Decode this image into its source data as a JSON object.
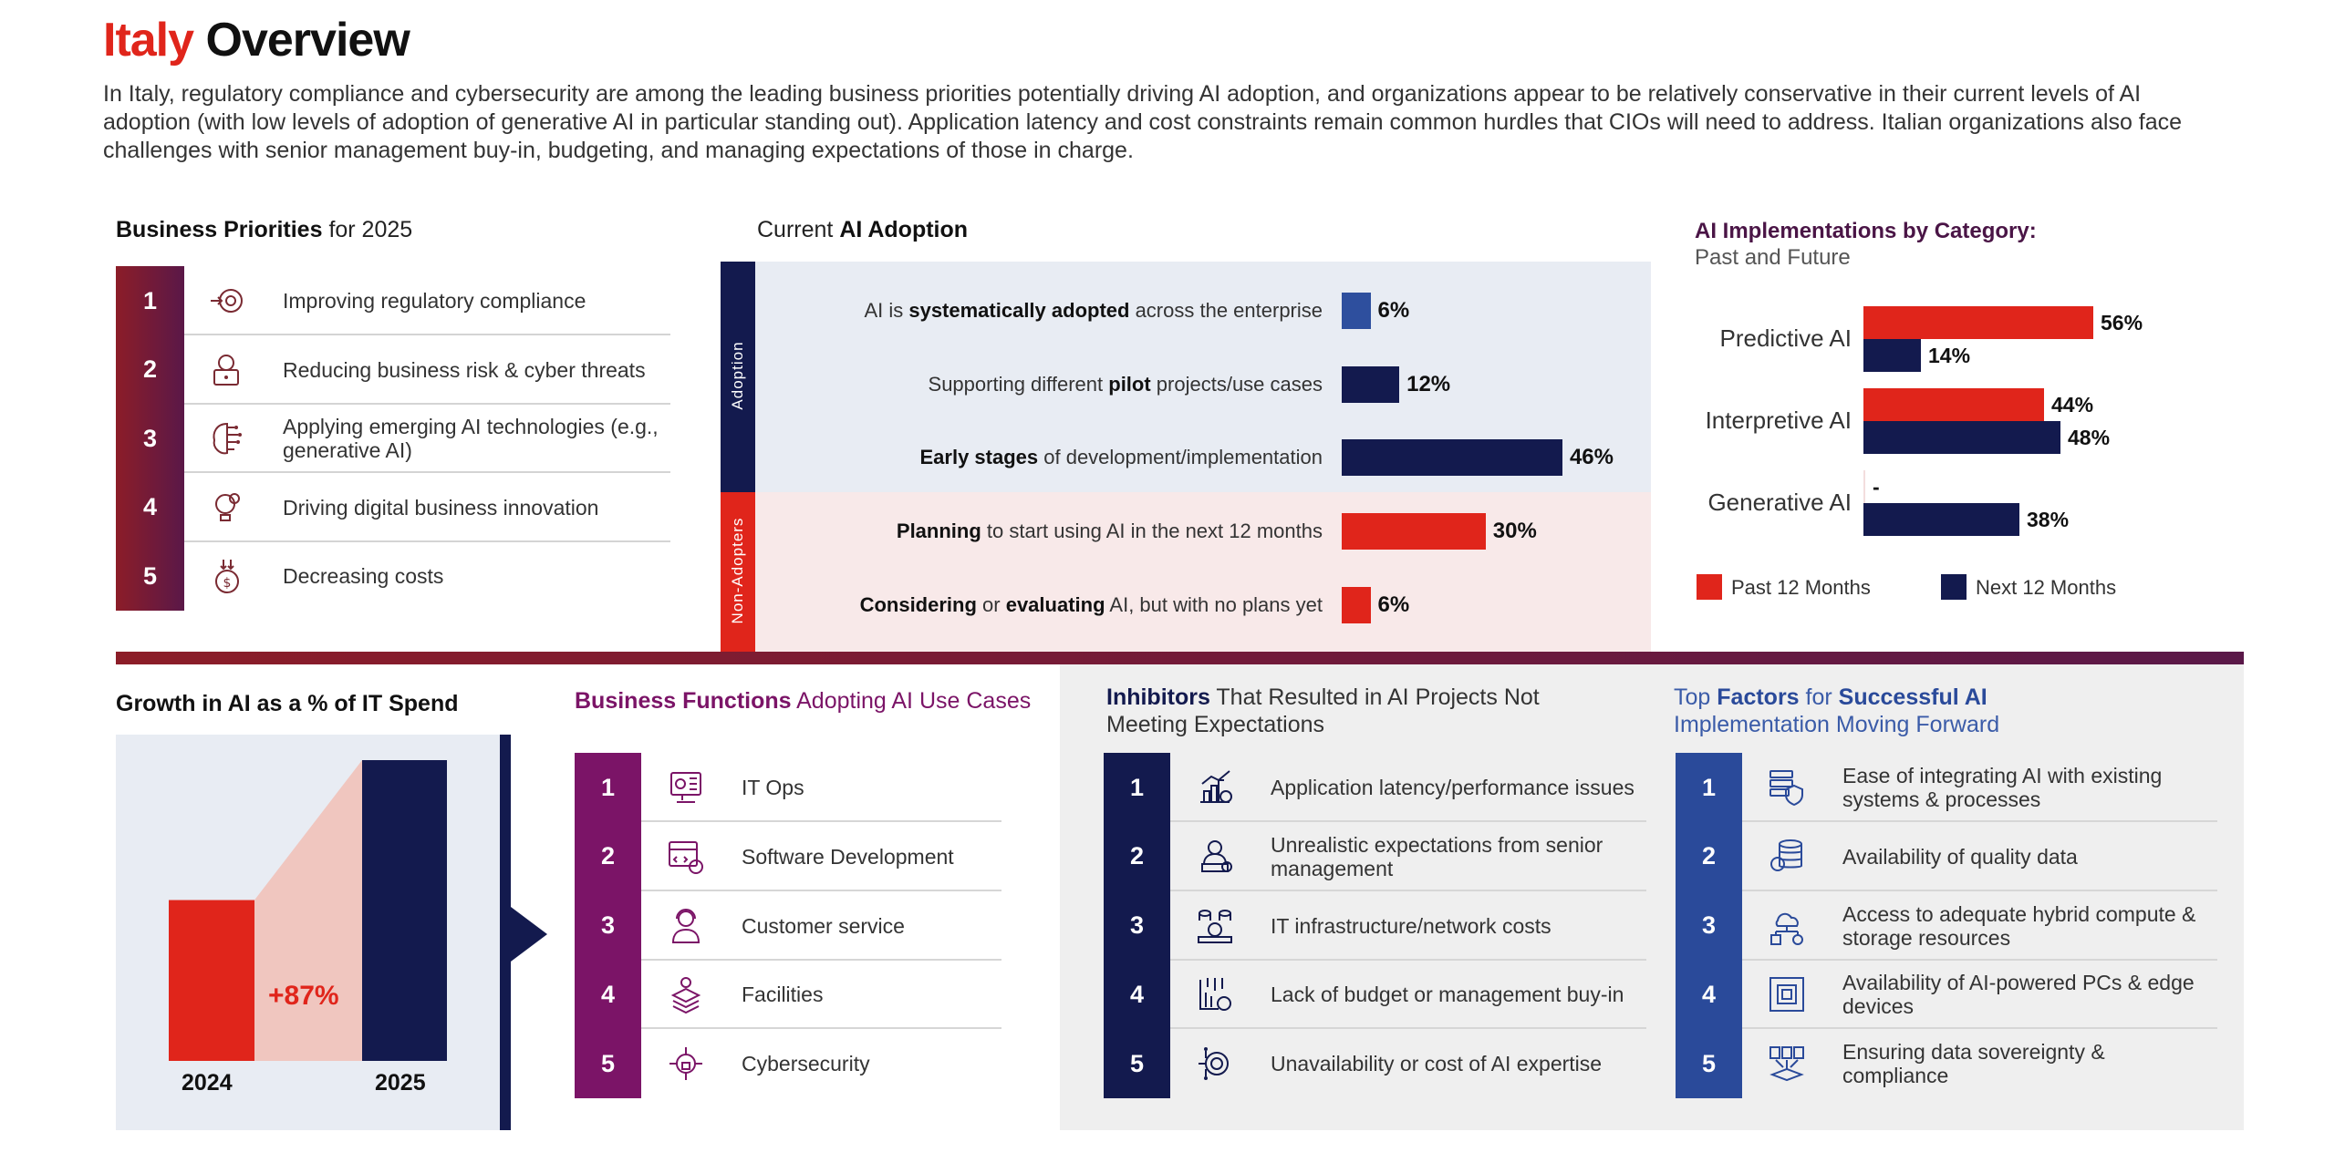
{
  "header": {
    "title_country": "Italy",
    "title_rest": "Overview",
    "intro": "In Italy, regulatory compliance and cybersecurity are among the leading business priorities potentially driving AI adoption, and organizations appear to be relatively conservative in their current levels of AI adoption (with low levels of adoption of generative AI in particular standing out). Application latency and cost constraints remain common hurdles that CIOs will need to address. Italian organizations also face challenges with senior management buy-in, budgeting, and managing expectations of those in charge."
  },
  "colors": {
    "red": "#e0251b",
    "navy": "#131a4e",
    "blue": "#2a4a9a",
    "purple": "#7b1467",
    "maroon": "#8c1d28",
    "light_pink": "#f0c6bf"
  },
  "business_priorities": {
    "title_bold": "Business Priorities",
    "title_rest": "for 2025",
    "items": [
      {
        "rank": "1",
        "icon": "compliance-gear-icon",
        "label": "Improving regulatory compliance"
      },
      {
        "rank": "2",
        "icon": "hacker-laptop-icon",
        "label": "Reducing business risk & cyber threats"
      },
      {
        "rank": "3",
        "icon": "ai-brain-icon",
        "label": "Applying emerging AI technologies (e.g., generative AI)"
      },
      {
        "rank": "4",
        "icon": "innovation-bulb-icon",
        "label": "Driving digital business innovation"
      },
      {
        "rank": "5",
        "icon": "cost-down-coin-icon",
        "label": "Decreasing costs"
      }
    ]
  },
  "ai_adoption": {
    "title_prefix": "Current",
    "title_bold": "AI Adoption",
    "group_adoption": "Adoption",
    "group_non_adopters": "Non-Adopters",
    "rows": [
      {
        "pre": "AI is ",
        "bold": "systematically adopted",
        "post": " across the enterprise",
        "value": 6,
        "label": "6%",
        "group": "adoption"
      },
      {
        "pre": "Supporting different ",
        "bold": "pilot",
        "post": " projects/use cases",
        "value": 12,
        "label": "12%",
        "group": "adoption"
      },
      {
        "pre": "",
        "bold": "Early stages",
        "post": " of development/implementation",
        "value": 46,
        "label": "46%",
        "group": "adoption"
      },
      {
        "pre": "",
        "bold": "Planning",
        "post": " to start using AI in the next 12 months",
        "value": 30,
        "label": "30%",
        "group": "non-adopters"
      },
      {
        "pre": "",
        "bold": "Considering",
        "mid": " or ",
        "bold2": "evaluating",
        "post": " AI, but with no plans yet",
        "value": 6,
        "label": "6%",
        "group": "non-adopters"
      }
    ]
  },
  "chart_data": [
    {
      "type": "bar",
      "orientation": "horizontal",
      "title": "Current AI Adoption",
      "categories": [
        "AI is systematically adopted across the enterprise",
        "Supporting different pilot projects/use cases",
        "Early stages of development/implementation",
        "Planning to start using AI in the next 12 months",
        "Considering or evaluating AI, but with no plans yet"
      ],
      "groups": [
        "Adoption",
        "Adoption",
        "Adoption",
        "Non-Adopters",
        "Non-Adopters"
      ],
      "values": [
        6,
        12,
        46,
        30,
        6
      ],
      "unit": "%"
    },
    {
      "type": "bar",
      "orientation": "horizontal",
      "title": "AI Implementations by Category: Past and Future",
      "categories": [
        "Predictive AI",
        "Interpretive AI",
        "Generative AI"
      ],
      "series": [
        {
          "name": "Past 12 Months",
          "values": [
            56,
            44,
            null
          ],
          "labels": [
            "56%",
            "44%",
            "-"
          ],
          "color": "#e0251b"
        },
        {
          "name": "Next 12 Months",
          "values": [
            14,
            48,
            38
          ],
          "labels": [
            "14%",
            "48%",
            "38%"
          ],
          "color": "#131a4e"
        }
      ],
      "legend": "bottom",
      "unit": "%"
    },
    {
      "type": "bar",
      "title": "Growth in AI as a % of IT Spend",
      "categories": [
        "2024",
        "2025"
      ],
      "relative_values": [
        1,
        1.87
      ],
      "annotation": "+87%"
    }
  ],
  "ai_implementations": {
    "title_bold": "AI Implementations by Category:",
    "title_rest": "Past and Future",
    "legend": [
      {
        "label": "Past 12 Months",
        "color": "#e0251b"
      },
      {
        "label": "Next 12 Months",
        "color": "#131a4e"
      }
    ]
  },
  "growth": {
    "title": "Growth in AI as a % of IT Spend",
    "year_a": "2024",
    "year_b": "2025",
    "change": "+87%"
  },
  "business_functions": {
    "title_bold": "Business Functions",
    "title_rest": "Adopting AI Use Cases",
    "items": [
      {
        "rank": "1",
        "icon": "it-ops-monitor-icon",
        "label": "IT Ops"
      },
      {
        "rank": "2",
        "icon": "code-window-gear-icon",
        "label": "Software Development"
      },
      {
        "rank": "3",
        "icon": "headset-agent-icon",
        "label": "Customer service"
      },
      {
        "rank": "4",
        "icon": "layers-gear-icon",
        "label": "Facilities"
      },
      {
        "rank": "5",
        "icon": "circuit-lock-icon",
        "label": "Cybersecurity"
      }
    ]
  },
  "inhibitors": {
    "title_bold": "Inhibitors",
    "title_rest": "That Resulted in AI Projects Not Meeting Expectations",
    "items": [
      {
        "rank": "1",
        "icon": "chart-gear-alert-icon",
        "label": "Application latency/performance issues"
      },
      {
        "rank": "2",
        "icon": "manager-podium-icon",
        "label": "Unrealistic expectations from senior management"
      },
      {
        "rank": "3",
        "icon": "database-cost-icon",
        "label": "IT infrastructure/network costs"
      },
      {
        "rank": "4",
        "icon": "budget-down-icon",
        "label": "Lack of budget or management buy-in"
      },
      {
        "rank": "5",
        "icon": "expertise-cost-icon",
        "label": "Unavailability or cost of AI expertise"
      }
    ]
  },
  "success_factors": {
    "title_pre": "Top",
    "title_bold1": "Factors",
    "title_mid": "for",
    "title_bold2": "Successful AI",
    "title_line2": "Implementation Moving Forward",
    "items": [
      {
        "rank": "1",
        "icon": "server-shield-icon",
        "label": "Ease of integrating AI with existing systems & processes"
      },
      {
        "rank": "2",
        "icon": "database-badge-icon",
        "label": "Availability of quality data"
      },
      {
        "rank": "3",
        "icon": "cloud-hybrid-icon",
        "label": "Access to adequate hybrid compute & storage resources"
      },
      {
        "rank": "4",
        "icon": "chip-board-icon",
        "label": "Availability of AI-powered PCs & edge devices"
      },
      {
        "rank": "5",
        "icon": "data-sovereignty-icon",
        "label": "Ensuring data sovereignty & compliance"
      }
    ]
  }
}
